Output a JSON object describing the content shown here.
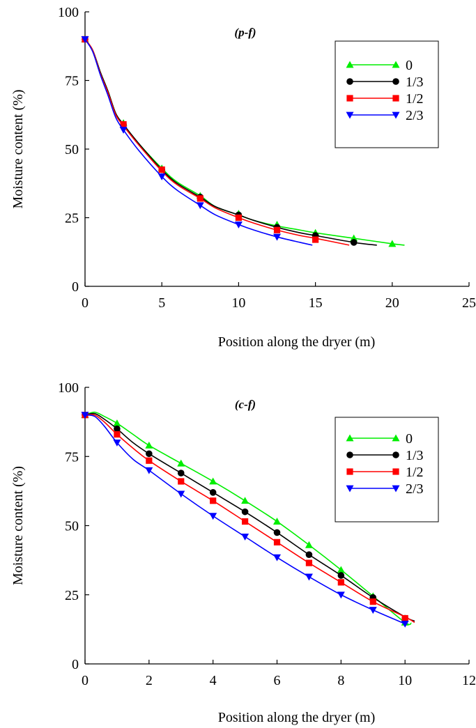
{
  "chart_data": [
    {
      "type": "line",
      "title": "(p-f)",
      "xlabel": "Position along the dryer (m)",
      "ylabel": "Moisture content (%)",
      "xlim": [
        0,
        25
      ],
      "ylim": [
        0,
        100
      ],
      "xticks": [
        0,
        5,
        10,
        15,
        20,
        25
      ],
      "yticks": [
        0,
        25,
        50,
        75,
        100
      ],
      "grid": false,
      "legend": "top-right",
      "series": [
        {
          "name": "0",
          "color": "#00ee00",
          "marker": "triangle-up",
          "curve": [
            [
              0,
              90
            ],
            [
              0.5,
              86
            ],
            [
              1,
              78
            ],
            [
              1.5,
              71
            ],
            [
              2,
              63
            ],
            [
              2.5,
              59
            ],
            [
              3.5,
              52
            ],
            [
              5,
              43
            ],
            [
              6,
              38
            ],
            [
              7.5,
              33
            ],
            [
              8.5,
              29
            ],
            [
              10,
              26
            ],
            [
              11,
              24
            ],
            [
              12.5,
              22
            ],
            [
              14,
              20.5
            ],
            [
              15,
              19.5
            ],
            [
              17.5,
              17.5
            ],
            [
              20,
              15.5
            ],
            [
              20.8,
              15
            ]
          ],
          "points": [
            [
              0,
              90
            ],
            [
              2.5,
              59.5
            ],
            [
              5,
              43
            ],
            [
              7.5,
              33
            ],
            [
              10,
              26.5
            ],
            [
              12.5,
              22.5
            ],
            [
              15,
              19.5
            ],
            [
              17.5,
              17.5
            ],
            [
              20,
              15.5
            ]
          ]
        },
        {
          "name": "1/3",
          "color": "#000000",
          "marker": "circle",
          "curve": [
            [
              0,
              90
            ],
            [
              0.5,
              86
            ],
            [
              1,
              78
            ],
            [
              1.5,
              71
            ],
            [
              2,
              63
            ],
            [
              2.5,
              59
            ],
            [
              3.5,
              52
            ],
            [
              5,
              42.5
            ],
            [
              6,
              37.5
            ],
            [
              7.5,
              32.5
            ],
            [
              8.5,
              29
            ],
            [
              10,
              26
            ],
            [
              11,
              24
            ],
            [
              12.5,
              21.5
            ],
            [
              14,
              19.5
            ],
            [
              15,
              18.5
            ],
            [
              17.5,
              16
            ],
            [
              19,
              15
            ]
          ],
          "points": [
            [
              0,
              90
            ],
            [
              2.5,
              59
            ],
            [
              5,
              42.5
            ],
            [
              7.5,
              32.5
            ],
            [
              10,
              26
            ],
            [
              12.5,
              21.5
            ],
            [
              15,
              18.5
            ],
            [
              17.5,
              16
            ]
          ]
        },
        {
          "name": "1/2",
          "color": "#ff0000",
          "marker": "square",
          "curve": [
            [
              0,
              90
            ],
            [
              0.5,
              86
            ],
            [
              1,
              77.5
            ],
            [
              1.5,
              70.5
            ],
            [
              2,
              62.5
            ],
            [
              2.5,
              58.5
            ],
            [
              3.5,
              51.5
            ],
            [
              5,
              42
            ],
            [
              6,
              37
            ],
            [
              7.5,
              32
            ],
            [
              8.5,
              28.5
            ],
            [
              10,
              25
            ],
            [
              11,
              23
            ],
            [
              12.5,
              20.5
            ],
            [
              14,
              18.5
            ],
            [
              15,
              17.5
            ],
            [
              17.2,
              15
            ]
          ],
          "points": [
            [
              0,
              90
            ],
            [
              2.5,
              59
            ],
            [
              5,
              42.5
            ],
            [
              7.5,
              32
            ],
            [
              10,
              25
            ],
            [
              12.5,
              20.5
            ],
            [
              15,
              17
            ]
          ]
        },
        {
          "name": "2/3",
          "color": "#0000ff",
          "marker": "triangle-down",
          "curve": [
            [
              0,
              90
            ],
            [
              0.5,
              85.5
            ],
            [
              1,
              77
            ],
            [
              1.5,
              69.5
            ],
            [
              2,
              61.5
            ],
            [
              2.5,
              57
            ],
            [
              3.5,
              49.5
            ],
            [
              5,
              40
            ],
            [
              6,
              35
            ],
            [
              7.5,
              29.5
            ],
            [
              8.5,
              26
            ],
            [
              10,
              22.5
            ],
            [
              11,
              20.5
            ],
            [
              12.5,
              18
            ],
            [
              14,
              16
            ],
            [
              14.8,
              15
            ]
          ],
          "points": [
            [
              0,
              90
            ],
            [
              2.5,
              57
            ],
            [
              5,
              40
            ],
            [
              7.5,
              29.5
            ],
            [
              10,
              22.5
            ],
            [
              12.5,
              18
            ]
          ]
        }
      ]
    },
    {
      "type": "line",
      "title": "(c-f)",
      "xlabel": "Position along the dryer (m)",
      "ylabel": "Moisture content (%)",
      "xlim": [
        0,
        12
      ],
      "ylim": [
        0,
        100
      ],
      "xticks": [
        0,
        2,
        4,
        6,
        8,
        10,
        12
      ],
      "yticks": [
        0,
        25,
        50,
        75,
        100
      ],
      "grid": false,
      "legend": "top-right",
      "series": [
        {
          "name": "0",
          "color": "#00ee00",
          "marker": "triangle-up",
          "curve": [
            [
              0,
              90
            ],
            [
              0.3,
              91
            ],
            [
              0.6,
              89.5
            ],
            [
              1,
              87
            ],
            [
              1.5,
              83
            ],
            [
              2,
              79
            ],
            [
              3,
              72.5
            ],
            [
              4,
              66
            ],
            [
              5,
              59
            ],
            [
              6,
              51.5
            ],
            [
              7,
              43
            ],
            [
              8,
              34
            ],
            [
              9,
              24.5
            ],
            [
              10,
              15
            ],
            [
              10.2,
              14.8
            ]
          ],
          "points": [
            [
              0,
              90
            ],
            [
              1,
              87
            ],
            [
              2,
              79
            ],
            [
              3,
              72.5
            ],
            [
              4,
              66
            ],
            [
              5,
              59
            ],
            [
              6,
              51.5
            ],
            [
              7,
              43
            ],
            [
              8,
              34
            ],
            [
              9,
              24.5
            ],
            [
              10,
              15
            ]
          ]
        },
        {
          "name": "1/3",
          "color": "#000000",
          "marker": "circle",
          "curve": [
            [
              0,
              90
            ],
            [
              0.3,
              90.5
            ],
            [
              0.6,
              88.5
            ],
            [
              1,
              85
            ],
            [
              1.5,
              80
            ],
            [
              2,
              76
            ],
            [
              3,
              69
            ],
            [
              4,
              62
            ],
            [
              5,
              55
            ],
            [
              6,
              47.5
            ],
            [
              7,
              39.5
            ],
            [
              8,
              32
            ],
            [
              9,
              24
            ],
            [
              10,
              17
            ],
            [
              10.3,
              15.5
            ]
          ],
          "points": [
            [
              0,
              90
            ],
            [
              1,
              85
            ],
            [
              2,
              76
            ],
            [
              3,
              69
            ],
            [
              4,
              62
            ],
            [
              5,
              55
            ],
            [
              6,
              47.5
            ],
            [
              7,
              39.5
            ],
            [
              8,
              32
            ],
            [
              9,
              24
            ],
            [
              10,
              16.5
            ]
          ]
        },
        {
          "name": "1/2",
          "color": "#ff0000",
          "marker": "square",
          "curve": [
            [
              0,
              90
            ],
            [
              0.3,
              90
            ],
            [
              0.6,
              87.5
            ],
            [
              1,
              83
            ],
            [
              1.5,
              78
            ],
            [
              2,
              73.5
            ],
            [
              3,
              66
            ],
            [
              4,
              59
            ],
            [
              5,
              51.5
            ],
            [
              6,
              44
            ],
            [
              7,
              36.5
            ],
            [
              8,
              29.5
            ],
            [
              9,
              22.5
            ],
            [
              10,
              17
            ],
            [
              10.3,
              15
            ]
          ],
          "points": [
            [
              0,
              90
            ],
            [
              1,
              83
            ],
            [
              2,
              73.5
            ],
            [
              3,
              66
            ],
            [
              4,
              59
            ],
            [
              5,
              51.5
            ],
            [
              6,
              44
            ],
            [
              7,
              36.5
            ],
            [
              8,
              29.5
            ],
            [
              9,
              22.5
            ],
            [
              10,
              16.5
            ]
          ]
        },
        {
          "name": "2/3",
          "color": "#0000ff",
          "marker": "triangle-down",
          "curve": [
            [
              0,
              90
            ],
            [
              0.3,
              89.5
            ],
            [
              0.6,
              86
            ],
            [
              1,
              80
            ],
            [
              1.5,
              74
            ],
            [
              2,
              70
            ],
            [
              3,
              61.5
            ],
            [
              4,
              53.5
            ],
            [
              5,
              46
            ],
            [
              6,
              38.5
            ],
            [
              7,
              31.5
            ],
            [
              8,
              25
            ],
            [
              9,
              19.5
            ],
            [
              10,
              14.5
            ]
          ],
          "points": [
            [
              0,
              90
            ],
            [
              1,
              80
            ],
            [
              2,
              70
            ],
            [
              3,
              61.5
            ],
            [
              4,
              53.5
            ],
            [
              5,
              46
            ],
            [
              6,
              38.5
            ],
            [
              7,
              31.5
            ],
            [
              8,
              25
            ],
            [
              9,
              19.5
            ],
            [
              10,
              14.5
            ]
          ]
        }
      ]
    }
  ]
}
